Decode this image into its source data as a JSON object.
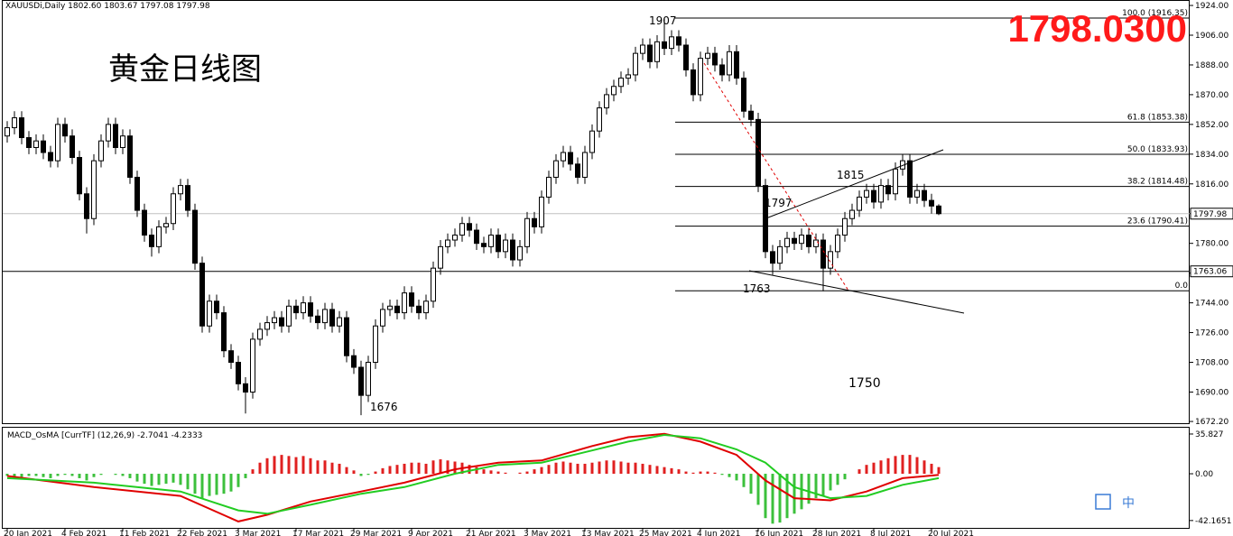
{
  "chart_data": {
    "type": "candlestick",
    "title": "黄金日线图",
    "price_label": "1798.0300",
    "info": "XAUUSDi,Daily  1802.60 1803.67 1797.08 1797.98",
    "bull_color": "#ffffff",
    "bear_color": "#000000",
    "open": [
      1845,
      1850,
      1856,
      1844,
      1838,
      1842,
      1835,
      1830,
      1852,
      1845,
      1832,
      1810,
      1795,
      1830,
      1842,
      1852,
      1838,
      1845,
      1820,
      1800,
      1785,
      1778,
      1790,
      1792,
      1810,
      1815,
      1800,
      1768,
      1730,
      1745,
      1738,
      1715,
      1708,
      1695,
      1690,
      1722,
      1728,
      1732,
      1735,
      1730,
      1742,
      1738,
      1744,
      1736,
      1732,
      1740,
      1730,
      1735,
      1712,
      1705,
      1688,
      1708,
      1730,
      1740,
      1742,
      1738,
      1750,
      1742,
      1738,
      1745,
      1765,
      1778,
      1782,
      1785,
      1792,
      1788,
      1780,
      1778,
      1785,
      1775,
      1782,
      1770,
      1778,
      1795,
      1790,
      1808,
      1820,
      1830,
      1835,
      1828,
      1820,
      1835,
      1848,
      1862,
      1870,
      1875,
      1880,
      1882,
      1895,
      1900,
      1890,
      1902,
      1898,
      1905,
      1900,
      1885,
      1870,
      1892,
      1895,
      1888,
      1882,
      1896,
      1880,
      1860,
      1855,
      1815,
      1775,
      1768,
      1778,
      1783,
      1780,
      1785,
      1778,
      1782,
      1765,
      1775,
      1785,
      1795,
      1800,
      1808,
      1812,
      1805,
      1815,
      1810,
      1825,
      1830,
      1808,
      1812,
      1806,
      1802.6
    ],
    "high": [
      1854,
      1860,
      1860,
      1848,
      1846,
      1846,
      1839,
      1856,
      1856,
      1849,
      1836,
      1814,
      1834,
      1846,
      1856,
      1856,
      1849,
      1849,
      1824,
      1804,
      1789,
      1794,
      1796,
      1814,
      1819,
      1819,
      1804,
      1772,
      1749,
      1749,
      1742,
      1719,
      1712,
      1699,
      1726,
      1732,
      1736,
      1739,
      1739,
      1746,
      1746,
      1748,
      1748,
      1740,
      1744,
      1744,
      1739,
      1739,
      1716,
      1709,
      1712,
      1734,
      1744,
      1746,
      1746,
      1754,
      1754,
      1746,
      1749,
      1769,
      1782,
      1786,
      1789,
      1796,
      1796,
      1792,
      1784,
      1789,
      1789,
      1786,
      1786,
      1782,
      1799,
      1799,
      1812,
      1824,
      1834,
      1839,
      1839,
      1832,
      1839,
      1852,
      1866,
      1874,
      1879,
      1884,
      1886,
      1899,
      1904,
      1904,
      1906,
      1916.35,
      1909,
      1909,
      1904,
      1889,
      1896,
      1899,
      1899,
      1892,
      1900,
      1900,
      1884,
      1864,
      1859,
      1819,
      1779,
      1782,
      1787,
      1787,
      1789,
      1789,
      1786,
      1786,
      1779,
      1789,
      1799,
      1804,
      1812,
      1816,
      1816,
      1819,
      1819,
      1829,
      1834,
      1834,
      1816,
      1816,
      1810,
      1803.67
    ],
    "low": [
      1841,
      1846,
      1840,
      1834,
      1834,
      1831,
      1826,
      1826,
      1841,
      1828,
      1806,
      1786,
      1791,
      1826,
      1838,
      1834,
      1834,
      1816,
      1796,
      1781,
      1772,
      1774,
      1786,
      1788,
      1806,
      1796,
      1764,
      1726,
      1726,
      1734,
      1711,
      1704,
      1691,
      1677,
      1686,
      1718,
      1724,
      1728,
      1726,
      1726,
      1734,
      1734,
      1732,
      1728,
      1728,
      1726,
      1726,
      1708,
      1701,
      1676,
      1684,
      1704,
      1726,
      1736,
      1734,
      1734,
      1738,
      1734,
      1734,
      1741,
      1761,
      1774,
      1778,
      1781,
      1784,
      1776,
      1774,
      1774,
      1771,
      1771,
      1766,
      1766,
      1774,
      1786,
      1786,
      1804,
      1816,
      1826,
      1824,
      1816,
      1816,
      1831,
      1844,
      1858,
      1866,
      1871,
      1876,
      1878,
      1891,
      1886,
      1886,
      1894,
      1894,
      1896,
      1881,
      1866,
      1866,
      1888,
      1884,
      1878,
      1878,
      1876,
      1856,
      1851,
      1811,
      1771,
      1761,
      1764,
      1774,
      1776,
      1776,
      1774,
      1774,
      1751,
      1761,
      1771,
      1781,
      1791,
      1796,
      1804,
      1801,
      1801,
      1806,
      1806,
      1821,
      1804,
      1804,
      1802,
      1798,
      1797.08
    ],
    "close": [
      1850,
      1856,
      1844,
      1838,
      1842,
      1835,
      1830,
      1852,
      1845,
      1832,
      1810,
      1795,
      1830,
      1842,
      1852,
      1838,
      1845,
      1820,
      1800,
      1785,
      1778,
      1790,
      1792,
      1810,
      1815,
      1800,
      1768,
      1730,
      1745,
      1738,
      1715,
      1708,
      1695,
      1690,
      1722,
      1728,
      1732,
      1735,
      1730,
      1742,
      1738,
      1744,
      1736,
      1732,
      1740,
      1730,
      1735,
      1712,
      1705,
      1688,
      1708,
      1730,
      1740,
      1742,
      1738,
      1750,
      1742,
      1738,
      1745,
      1765,
      1778,
      1782,
      1785,
      1792,
      1788,
      1780,
      1778,
      1785,
      1775,
      1782,
      1770,
      1778,
      1795,
      1790,
      1808,
      1820,
      1830,
      1835,
      1828,
      1820,
      1835,
      1848,
      1862,
      1870,
      1875,
      1880,
      1882,
      1895,
      1900,
      1890,
      1902,
      1898,
      1905,
      1900,
      1885,
      1870,
      1892,
      1895,
      1888,
      1882,
      1896,
      1880,
      1860,
      1855,
      1815,
      1775,
      1768,
      1778,
      1783,
      1780,
      1785,
      1778,
      1782,
      1765,
      1775,
      1785,
      1795,
      1800,
      1808,
      1812,
      1805,
      1815,
      1810,
      1825,
      1830,
      1808,
      1812,
      1806,
      1802.6,
      1797.98
    ],
    "xlim": [
      -1,
      163.75
    ],
    "xticks": [
      {
        "value": 0,
        "label": "20 Jan 2021"
      },
      {
        "value": 8,
        "label": "4 Feb 2021"
      },
      {
        "value": 16,
        "label": "11 Feb 2021"
      },
      {
        "value": 24,
        "label": "22 Feb 2021"
      },
      {
        "value": 32,
        "label": "3 Mar 2021"
      },
      {
        "value": 40,
        "label": "17 Mar 2021"
      },
      {
        "value": 48,
        "label": "29 Mar 2021"
      },
      {
        "value": 56,
        "label": "9 Apr 2021"
      },
      {
        "value": 64,
        "label": "21 Apr 2021"
      },
      {
        "value": 72,
        "label": "3 May 2021"
      },
      {
        "value": 80,
        "label": "13 May 2021"
      },
      {
        "value": 88,
        "label": "25 May 2021"
      },
      {
        "value": 96,
        "label": "4 Jun 2021"
      },
      {
        "value": 104,
        "label": "16 Jun 2021"
      },
      {
        "value": 112,
        "label": "28 Jun 2021"
      },
      {
        "value": 120,
        "label": "8 Jul 2021"
      },
      {
        "value": 128,
        "label": "20 Jul 2021"
      }
    ],
    "ylim": [
      1670.6,
      1927.3
    ],
    "yticks": [
      {
        "value": 1672.2,
        "label": "1672.20"
      },
      {
        "value": 1690,
        "label": "1690.00"
      },
      {
        "value": 1708,
        "label": "1708.00"
      },
      {
        "value": 1726,
        "label": "1726.00"
      },
      {
        "value": 1744,
        "label": "1744.00"
      },
      {
        "value": 1762,
        "label": "1762.00"
      },
      {
        "value": 1780,
        "label": "1780.00"
      },
      {
        "value": 1798,
        "label": "1798.00"
      },
      {
        "value": 1816,
        "label": "1816.00"
      },
      {
        "value": 1834,
        "label": "1834.00"
      },
      {
        "value": 1852,
        "label": "1852.00"
      },
      {
        "value": 1870,
        "label": "1870.00"
      },
      {
        "value": 1888,
        "label": "1888.00"
      },
      {
        "value": 1906,
        "label": "1906.00"
      },
      {
        "value": 1924,
        "label": "1924.00"
      }
    ],
    "hlines": [
      {
        "value": 1797.98,
        "color": "#c0c0c0"
      },
      {
        "value": 1763.06,
        "color": "#000000"
      }
    ],
    "fib": [
      {
        "label": "100.0 (1916.35)",
        "value": 1916.35
      },
      {
        "label": "61.8 (1853.38)",
        "value": 1853.38
      },
      {
        "label": "50.0 (1833.93)",
        "value": 1833.93
      },
      {
        "label": "38.2 (1814.48)",
        "value": 1814.48
      },
      {
        "label": "23.6 (1790.41)",
        "value": 1790.41
      },
      {
        "label": "0.0",
        "value": 1751.3
      }
    ],
    "annotations": [
      "1907",
      "1815",
      "1797",
      "1763",
      "1676",
      "1750"
    ],
    "macd": {
      "title": "MACD_OsMA [CurrTF] (12,26,9) -2.7041 -4.2333",
      "ylim": [
        -49.6,
        41.5
      ],
      "yticks": [
        35.827,
        {
          "value": 0,
          "label": "0.00"
        },
        -42.1651
      ],
      "pos_color": "#e02020",
      "neg_color": "#3cc03c",
      "histogram": [
        -2,
        -3,
        -3,
        -2,
        -2,
        -3,
        -4,
        -2,
        -1,
        -2,
        -4,
        -6,
        -3,
        -1,
        0,
        -1,
        -2,
        -4,
        -7,
        -9,
        -11,
        -10,
        -9,
        -8,
        -10,
        -14,
        -18,
        -22,
        -20,
        -19,
        -18,
        -16,
        -12,
        -4,
        4,
        10,
        14,
        16,
        17,
        16,
        15,
        16,
        14,
        12,
        12,
        10,
        9,
        6,
        3,
        -2,
        -1,
        2,
        5,
        7,
        8,
        9,
        10,
        10,
        9,
        12,
        13,
        12,
        11,
        10,
        8,
        6,
        4,
        3,
        2,
        1,
        0,
        1,
        2,
        4,
        6,
        8,
        10,
        11,
        10,
        9,
        9,
        10,
        11,
        12,
        12,
        11,
        10,
        10,
        9,
        8,
        7,
        6,
        5,
        4,
        2,
        1,
        2,
        2,
        1,
        -1,
        -3,
        -6,
        -12,
        -18,
        -28,
        -40,
        -45,
        -44,
        -40,
        -36,
        -32,
        -27,
        -22,
        -20,
        -15,
        -10,
        -5,
        0,
        4,
        8,
        10,
        12,
        14,
        16,
        17,
        17,
        15,
        12,
        9,
        6
      ],
      "x": [
        0,
        12,
        24,
        32,
        36,
        42,
        49,
        55,
        62,
        68,
        74,
        81,
        86,
        91,
        96,
        101,
        105,
        109,
        114,
        119,
        124,
        129
      ],
      "lines": [
        {
          "color": "#e00000",
          "values": [
            -2,
            -12,
            -20,
            -43,
            -37,
            -25,
            -16,
            -8,
            4,
            10,
            12,
            25,
            33,
            36,
            29,
            17,
            -6,
            -22,
            -24,
            -16,
            -4,
            -1
          ]
        },
        {
          "color": "#22cc22",
          "values": [
            -4,
            -8,
            -16,
            -33,
            -36,
            -28,
            -18,
            -12,
            0,
            8,
            10,
            21,
            29,
            35,
            32,
            22,
            10,
            -12,
            -22,
            -20,
            -10,
            -4
          ]
        }
      ]
    }
  }
}
